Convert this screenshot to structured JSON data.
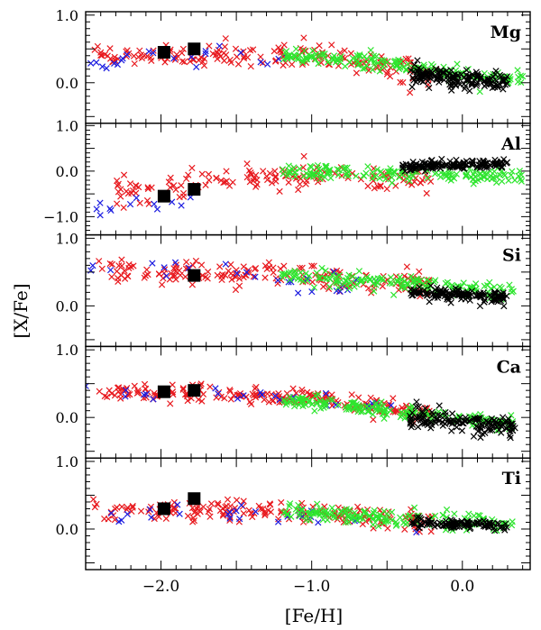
{
  "chart_data": {
    "type": "scatter",
    "xlabel": "[Fe/H]",
    "ylabel": "[X/Fe]",
    "xlim": [
      -2.5,
      0.45
    ],
    "x_ticks": [
      -2.0,
      -1.0,
      0.0
    ],
    "x_tick_labels": [
      "−2.0",
      "−1.0",
      "0.0"
    ],
    "colors": {
      "red": "#e8191e",
      "green": "#2ee52e",
      "blue": "#1c1ce0",
      "black": "#000000"
    },
    "panels": [
      {
        "element": "Mg",
        "ylim": [
          -0.6,
          1.05
        ],
        "y_ticks": [
          1.0,
          0.0
        ],
        "y_tick_labels": [
          "1.0",
          "0.0"
        ],
        "black_squares": [
          [
            -1.98,
            0.45
          ],
          [
            -1.78,
            0.5
          ]
        ],
        "clouds": [
          {
            "color": "red",
            "n": 170,
            "x_range": [
              -2.45,
              -0.15
            ],
            "trend": [
              [
                -2.45,
                0.45
              ],
              [
                -1.0,
                0.38
              ],
              [
                -0.3,
                0.15
              ]
            ],
            "spread": 0.09
          },
          {
            "color": "blue",
            "n": 22,
            "x_range": [
              -2.5,
              -1.0
            ],
            "trend": [
              [
                -2.5,
                0.35
              ],
              [
                -1.0,
                0.35
              ]
            ],
            "spread": 0.08
          },
          {
            "color": "green",
            "n": 170,
            "x_range": [
              -1.2,
              0.4
            ],
            "trend": [
              [
                -1.2,
                0.4
              ],
              [
                -0.5,
                0.3
              ],
              [
                0.0,
                0.1
              ],
              [
                0.4,
                0.05
              ]
            ],
            "spread": 0.06
          },
          {
            "color": "black",
            "n": 160,
            "x_range": [
              -0.35,
              0.3
            ],
            "trend": [
              [
                -0.35,
                0.1
              ],
              [
                0.3,
                0.02
              ]
            ],
            "spread": 0.07
          }
        ]
      },
      {
        "element": "Al",
        "ylim": [
          -1.4,
          1.05
        ],
        "y_ticks": [
          1.0,
          0.0,
          -1.0
        ],
        "y_tick_labels": [
          "1.0",
          "0.0",
          "−1.0"
        ],
        "black_squares": [
          [
            -1.98,
            -0.55
          ],
          [
            -1.78,
            -0.4
          ]
        ],
        "clouds": [
          {
            "color": "red",
            "n": 140,
            "x_range": [
              -2.3,
              -0.2
            ],
            "trend": [
              [
                -2.3,
                -0.4
              ],
              [
                -1.5,
                -0.2
              ],
              [
                -1.0,
                -0.05
              ],
              [
                -0.2,
                -0.25
              ]
            ],
            "spread": 0.16
          },
          {
            "color": "blue",
            "n": 12,
            "x_range": [
              -2.48,
              -1.8
            ],
            "trend": [
              [
                -2.48,
                -0.8
              ],
              [
                -1.8,
                -0.65
              ]
            ],
            "spread": 0.08
          },
          {
            "color": "green",
            "n": 150,
            "x_range": [
              -1.2,
              0.4
            ],
            "trend": [
              [
                -1.2,
                0.0
              ],
              [
                -0.5,
                -0.05
              ],
              [
                0.4,
                -0.15
              ]
            ],
            "spread": 0.08
          },
          {
            "color": "black",
            "n": 150,
            "x_range": [
              -0.4,
              0.3
            ],
            "trend": [
              [
                -0.4,
                0.1
              ],
              [
                0.3,
                0.15
              ]
            ],
            "spread": 0.05
          }
        ]
      },
      {
        "element": "Si",
        "ylim": [
          -0.6,
          1.05
        ],
        "y_ticks": [
          1.0,
          0.0
        ],
        "y_tick_labels": [
          "1.0",
          "0.0"
        ],
        "black_squares": [
          [
            -1.78,
            0.45
          ]
        ],
        "clouds": [
          {
            "color": "red",
            "n": 170,
            "x_range": [
              -2.45,
              -0.2
            ],
            "trend": [
              [
                -2.45,
                0.55
              ],
              [
                -1.0,
                0.45
              ],
              [
                -0.2,
                0.3
              ]
            ],
            "spread": 0.09
          },
          {
            "color": "blue",
            "n": 26,
            "x_range": [
              -2.5,
              -0.3
            ],
            "trend": [
              [
                -2.5,
                0.6
              ],
              [
                -1.5,
                0.45
              ],
              [
                -0.3,
                0.25
              ]
            ],
            "spread": 0.1
          },
          {
            "color": "green",
            "n": 150,
            "x_range": [
              -1.2,
              0.35
            ],
            "trend": [
              [
                -1.2,
                0.45
              ],
              [
                -0.5,
                0.35
              ],
              [
                0.35,
                0.18
              ]
            ],
            "spread": 0.06
          },
          {
            "color": "black",
            "n": 140,
            "x_range": [
              -0.35,
              0.3
            ],
            "trend": [
              [
                -0.35,
                0.2
              ],
              [
                0.3,
                0.12
              ]
            ],
            "spread": 0.05
          }
        ]
      },
      {
        "element": "Ca",
        "ylim": [
          -0.6,
          1.05
        ],
        "y_ticks": [
          1.0,
          0.0
        ],
        "y_tick_labels": [
          "1.0",
          "0.0"
        ],
        "black_squares": [
          [
            -1.98,
            0.38
          ],
          [
            -1.78,
            0.4
          ]
        ],
        "clouds": [
          {
            "color": "red",
            "n": 190,
            "x_range": [
              -2.45,
              -0.2
            ],
            "trend": [
              [
                -2.45,
                0.38
              ],
              [
                -1.0,
                0.3
              ],
              [
                -0.2,
                0.05
              ]
            ],
            "spread": 0.06
          },
          {
            "color": "blue",
            "n": 22,
            "x_range": [
              -2.5,
              -0.3
            ],
            "trend": [
              [
                -2.5,
                0.42
              ],
              [
                -1.0,
                0.3
              ],
              [
                -0.3,
                0.1
              ]
            ],
            "spread": 0.06
          },
          {
            "color": "green",
            "n": 170,
            "x_range": [
              -1.2,
              0.35
            ],
            "trend": [
              [
                -1.2,
                0.25
              ],
              [
                -0.5,
                0.12
              ],
              [
                0.35,
                -0.1
              ]
            ],
            "spread": 0.05
          },
          {
            "color": "black",
            "n": 140,
            "x_range": [
              -0.35,
              0.35
            ],
            "trend": [
              [
                -0.35,
                0.0
              ],
              [
                0.35,
                -0.15
              ]
            ],
            "spread": 0.07
          }
        ]
      },
      {
        "element": "Ti",
        "ylim": [
          -0.6,
          1.05
        ],
        "y_ticks": [
          1.0,
          0.0
        ],
        "y_tick_labels": [
          "1.0",
          "0.0"
        ],
        "black_squares": [
          [
            -1.98,
            0.3
          ],
          [
            -1.78,
            0.45
          ]
        ],
        "clouds": [
          {
            "color": "red",
            "n": 170,
            "x_range": [
              -2.45,
              -0.2
            ],
            "trend": [
              [
                -2.45,
                0.3
              ],
              [
                -1.0,
                0.25
              ],
              [
                -0.2,
                0.1
              ]
            ],
            "spread": 0.08
          },
          {
            "color": "blue",
            "n": 26,
            "x_range": [
              -2.5,
              -0.3
            ],
            "trend": [
              [
                -2.5,
                0.25
              ],
              [
                -1.0,
                0.2
              ],
              [
                -0.3,
                0.05
              ]
            ],
            "spread": 0.07
          },
          {
            "color": "green",
            "n": 160,
            "x_range": [
              -1.2,
              0.35
            ],
            "trend": [
              [
                -1.2,
                0.25
              ],
              [
                -0.5,
                0.18
              ],
              [
                0.35,
                0.08
              ]
            ],
            "spread": 0.06
          },
          {
            "color": "black",
            "n": 110,
            "x_range": [
              -0.35,
              0.3
            ],
            "trend": [
              [
                -0.35,
                0.08
              ],
              [
                0.3,
                0.05
              ]
            ],
            "spread": 0.04
          }
        ]
      }
    ]
  }
}
